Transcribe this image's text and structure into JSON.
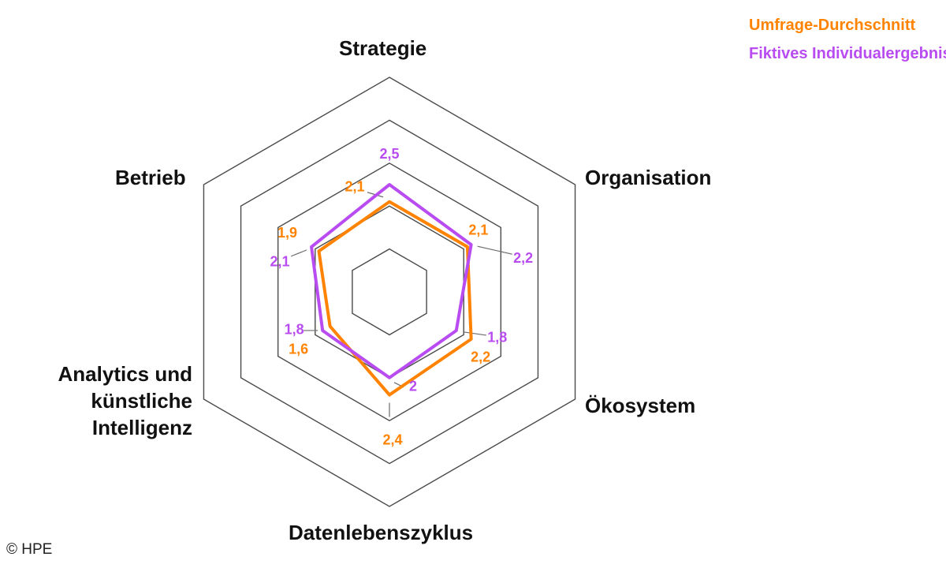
{
  "chart_data": {
    "type": "radar",
    "axes": [
      "Strategie",
      "Organisation",
      "Ökosystem",
      "Datenlebenszyklus",
      "Analytics und künstliche Intelligenz",
      "Betrieb"
    ],
    "rlim": [
      0,
      5
    ],
    "grid_levels": [
      1,
      2,
      3,
      4,
      5
    ],
    "series": [
      {
        "name": "Umfrage-Durchschnitt",
        "color": "#ff8300",
        "values": [
          2.1,
          2.1,
          2.2,
          2.4,
          1.6,
          1.9
        ],
        "labels": [
          "2,1",
          "2,1",
          "2,2",
          "2,4",
          "1,6",
          "1,9"
        ]
      },
      {
        "name": "Fiktives Individualergebnis",
        "color": "#b84cf0",
        "values": [
          2.5,
          2.2,
          1.8,
          2,
          1.8,
          2.1
        ],
        "labels": [
          "2,5",
          "2,2",
          "1,8",
          "2",
          "1,8",
          "2,1"
        ]
      }
    ]
  },
  "axis_titles": {
    "strategie": "Strategie",
    "organisation": "Organisation",
    "oekosystem": "Ökosystem",
    "datenlebenszyklus": "Datenlebenszyklus",
    "analytics_line1": "Analytics und",
    "analytics_line2": "künstliche",
    "analytics_line3": "Intelligenz",
    "betrieb": "Betrieb"
  },
  "legend": {
    "series1": "Umfrage-Durchschnitt",
    "series2": "Fiktives Individualergebnis"
  },
  "credit": "© HPE"
}
